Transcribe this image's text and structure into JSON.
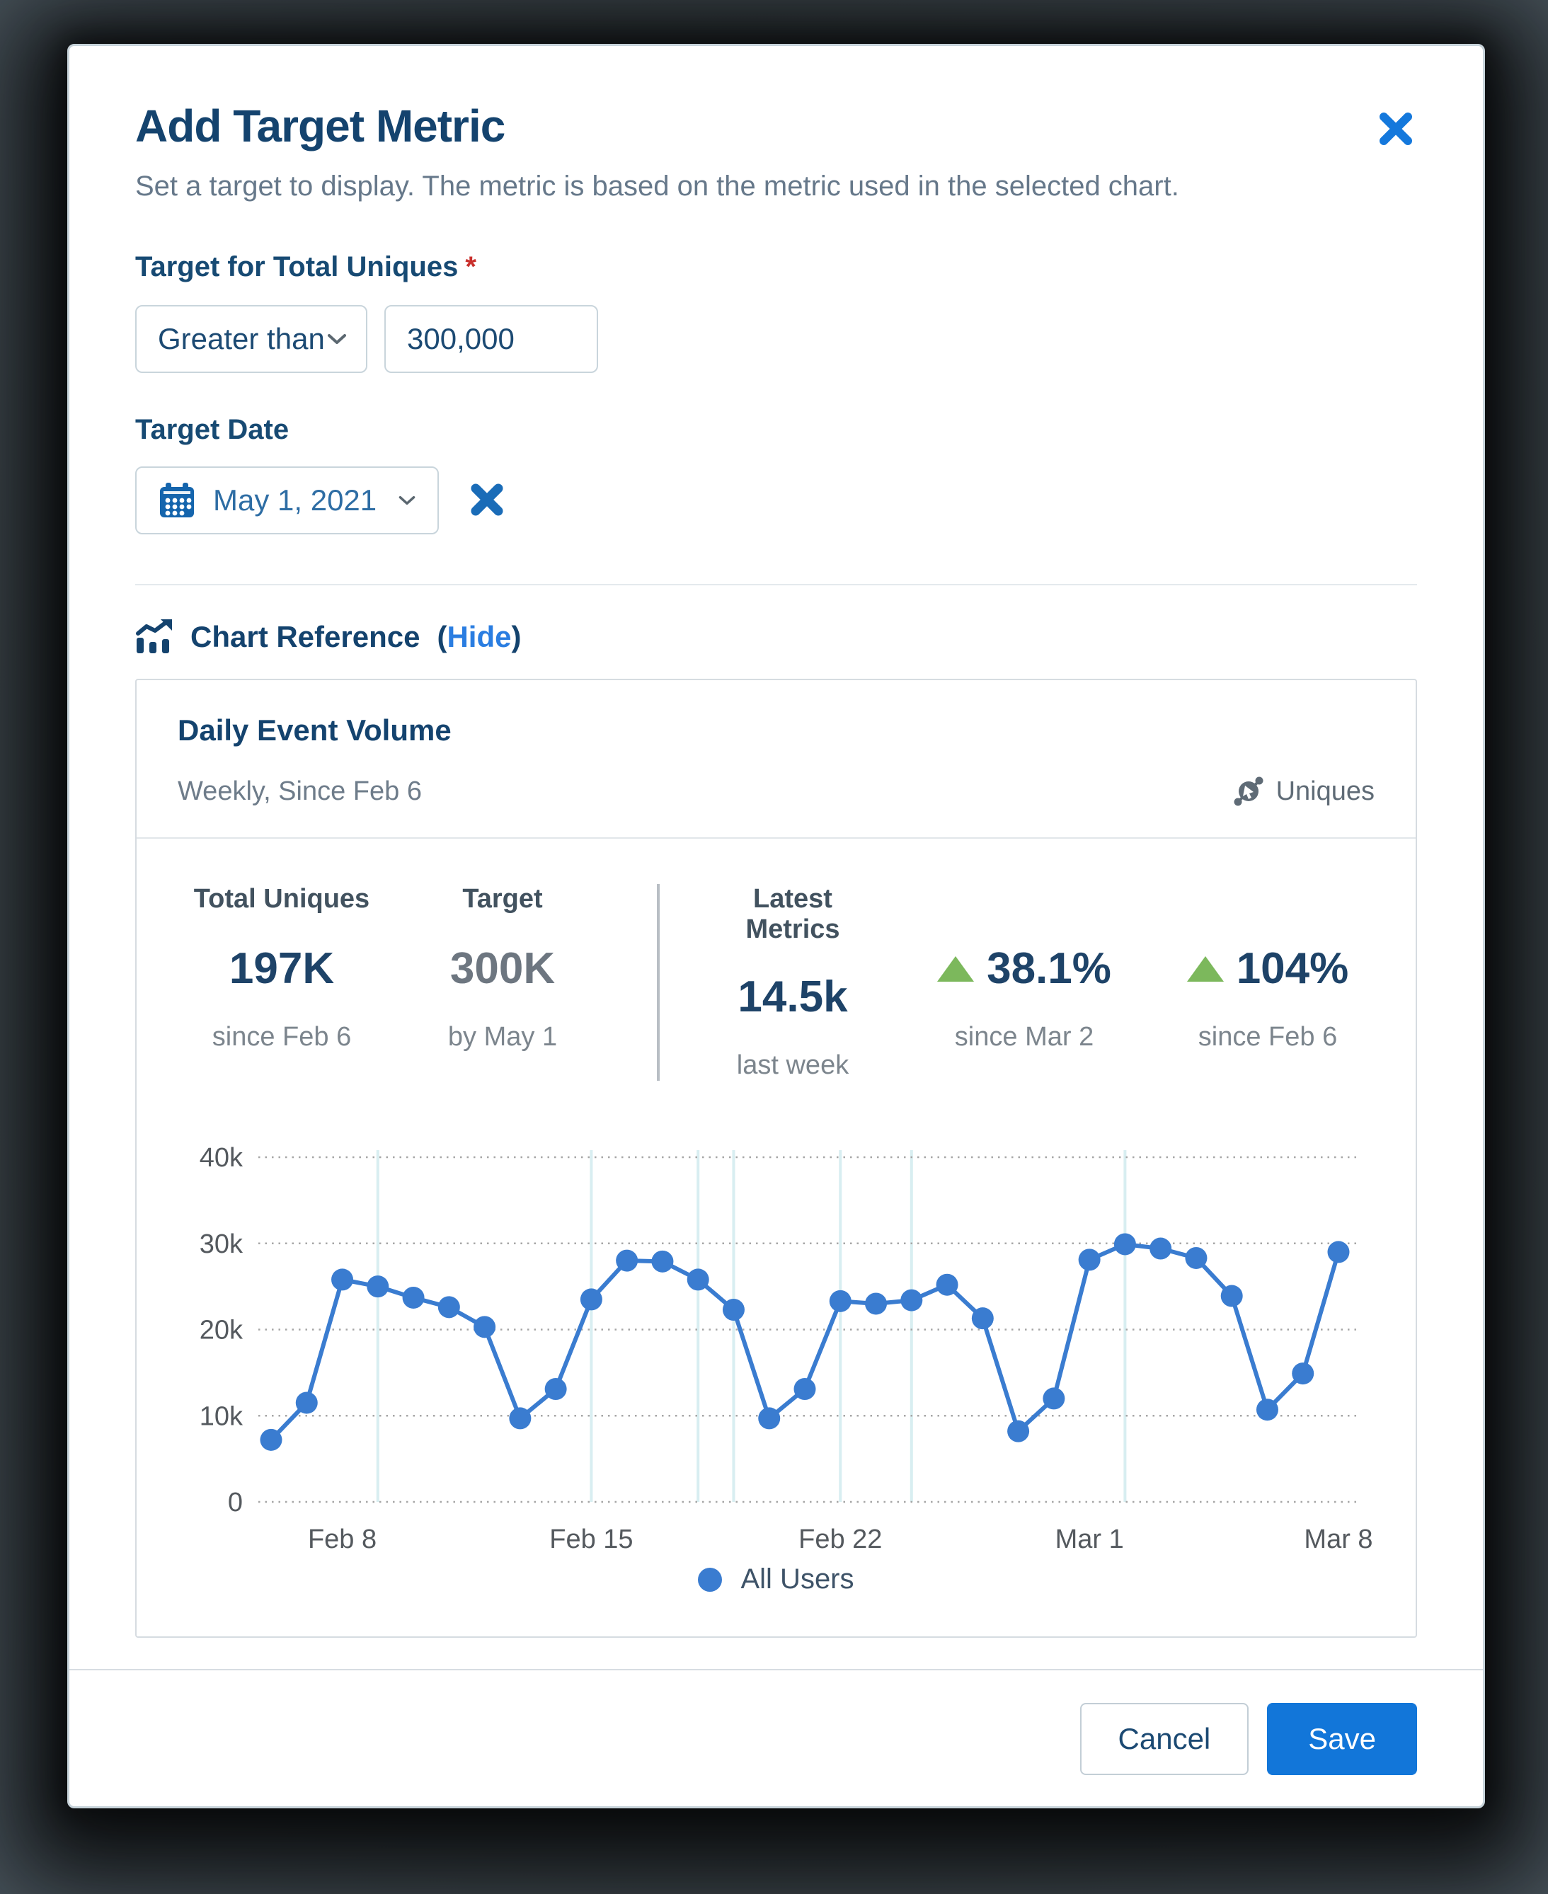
{
  "modal": {
    "title": "Add Target Metric",
    "subtitle": "Set a target to display. The metric is based on the metric used in the selected chart."
  },
  "form": {
    "target_label": "Target for Total Uniques",
    "required_mark": "*",
    "comparator_value": "Greater than",
    "target_value": "300,000",
    "date_label": "Target Date",
    "date_value": "May 1, 2021"
  },
  "chart_reference": {
    "label": "Chart Reference",
    "hide_open": "(",
    "hide_text": "Hide",
    "hide_close": ")"
  },
  "card": {
    "title": "Daily Event Volume",
    "subtitle": "Weekly, Since Feb 6",
    "mode_label": "Uniques",
    "metrics": {
      "total": {
        "label": "Total Uniques",
        "value": "197K",
        "caption": "since Feb 6"
      },
      "target": {
        "label": "Target",
        "value": "300K",
        "caption": "by May 1"
      },
      "latest": {
        "label": "Latest Metrics",
        "value": "14.5k",
        "caption": "last week"
      },
      "wow": {
        "value": "38.1%",
        "caption": "since Mar 2",
        "direction": "up"
      },
      "overall": {
        "value": "104%",
        "caption": "since Feb 6",
        "direction": "up"
      }
    }
  },
  "chart_data": {
    "type": "line",
    "title": "Daily Event Volume",
    "x_unit": "day",
    "x_range": [
      "Feb 6",
      "Mar 8"
    ],
    "x_tick_labels": [
      "Feb 8",
      "Feb 15",
      "Feb 22",
      "Mar 1",
      "Mar 8"
    ],
    "x_tick_indices": [
      2,
      9,
      16,
      23,
      30
    ],
    "y_tick_labels": [
      "0",
      "10k",
      "20k",
      "30k",
      "40k"
    ],
    "y_tick_values": [
      0,
      10000,
      20000,
      30000,
      40000
    ],
    "ylim": [
      0,
      40000
    ],
    "grid": "horizontal-dotted",
    "annotation_line_indices": [
      3,
      9,
      12,
      13,
      16,
      18,
      24
    ],
    "series": [
      {
        "name": "All Users",
        "color": "#3a7cd0",
        "values": [
          7200,
          11500,
          25800,
          25000,
          23700,
          22600,
          20300,
          9700,
          13100,
          23500,
          28000,
          27900,
          25800,
          22300,
          9700,
          13100,
          23300,
          23000,
          23400,
          25200,
          21300,
          8200,
          12000,
          28100,
          29900,
          29400,
          28300,
          23900,
          10700,
          14900,
          29000
        ]
      }
    ],
    "legend": [
      {
        "label": "All Users",
        "color": "#3a7cd0"
      }
    ],
    "legend_position": "bottom"
  },
  "footer": {
    "cancel_label": "Cancel",
    "save_label": "Save"
  },
  "colors": {
    "navy_text": "#14436e",
    "accent_blue": "#1276d9",
    "link_blue": "#2a7de1",
    "chart_blue": "#3a7cd0",
    "positive_green": "#7cb85c",
    "required_red": "#c9302c"
  }
}
